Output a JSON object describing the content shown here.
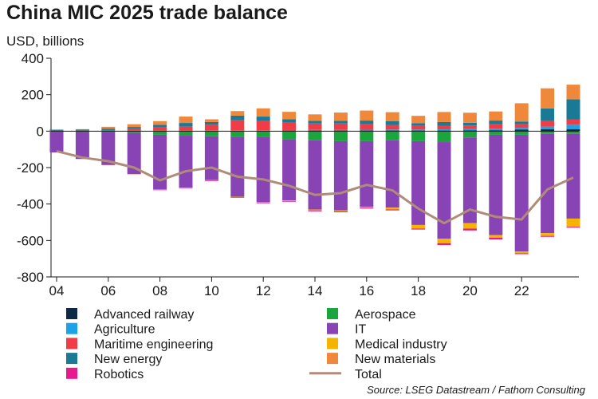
{
  "title": "China MIC 2025 trade balance",
  "unit_label": "USD, billions",
  "source": "Source: LSEG Datastream / Fathom Consulting",
  "chart_data": {
    "type": "bar",
    "stacked": true,
    "title": "China MIC 2025 trade balance",
    "ylabel": "USD, billions",
    "xlabel": "",
    "ylim": [
      -800,
      400
    ],
    "yticks": [
      400,
      200,
      0,
      -200,
      -400,
      -600,
      -800
    ],
    "grid": false,
    "legend_position": "bottom",
    "x": [
      "2004",
      "2005",
      "2006",
      "2007",
      "2008",
      "2009",
      "2010",
      "2011",
      "2012",
      "2013",
      "2014",
      "2015",
      "2016",
      "2017",
      "2018",
      "2019",
      "2020",
      "2021",
      "2022",
      "2023",
      "2024"
    ],
    "xtick_labels": [
      "04",
      "06",
      "08",
      "10",
      "12",
      "14",
      "16",
      "18",
      "20",
      "22"
    ],
    "xtick_years": [
      "2004",
      "2006",
      "2008",
      "2010",
      "2012",
      "2014",
      "2016",
      "2018",
      "2020",
      "2022"
    ],
    "series": [
      {
        "name": "Advanced railway",
        "color": "#0d2b45",
        "values": [
          0,
          0,
          1,
          2,
          3,
          3,
          2,
          2,
          2,
          3,
          3,
          3,
          3,
          3,
          3,
          3,
          4,
          5,
          8,
          10,
          10
        ]
      },
      {
        "name": "Aerospace",
        "color": "#1aa63c",
        "values": [
          -2,
          -3,
          -5,
          -10,
          -20,
          -25,
          -28,
          -30,
          -30,
          -45,
          -50,
          -55,
          -55,
          -50,
          -55,
          -60,
          -35,
          -20,
          -20,
          -15,
          -15
        ]
      },
      {
        "name": "Agriculture",
        "color": "#1aa3e8",
        "values": [
          0,
          0,
          1,
          1,
          2,
          2,
          3,
          3,
          3,
          3,
          4,
          4,
          5,
          6,
          6,
          7,
          7,
          8,
          10,
          15,
          25
        ]
      },
      {
        "name": "IT",
        "color": "#8844b4",
        "values": [
          -115,
          -150,
          -180,
          -225,
          -300,
          -285,
          -240,
          -330,
          -360,
          -335,
          -380,
          -380,
          -360,
          -370,
          -460,
          -530,
          -470,
          -550,
          -640,
          -545,
          -465
        ]
      },
      {
        "name": "Maritime engineering",
        "color": "#f03c46",
        "values": [
          3,
          4,
          4,
          10,
          15,
          20,
          30,
          55,
          50,
          40,
          35,
          35,
          30,
          25,
          20,
          20,
          20,
          25,
          20,
          30,
          30
        ]
      },
      {
        "name": "Medical industry",
        "color": "#f5b400",
        "values": [
          0,
          0,
          -1,
          -1,
          -2,
          -3,
          -3,
          -3,
          -3,
          -5,
          -5,
          -5,
          -5,
          -10,
          -20,
          -25,
          -30,
          -15,
          -10,
          -15,
          -45
        ]
      },
      {
        "name": "New energy",
        "color": "#1a7a96",
        "values": [
          5,
          5,
          8,
          10,
          15,
          20,
          15,
          25,
          25,
          20,
          15,
          15,
          20,
          20,
          15,
          20,
          15,
          20,
          15,
          70,
          110
        ]
      },
      {
        "name": "New materials",
        "color": "#f0883c",
        "values": [
          0,
          2,
          10,
          15,
          20,
          35,
          15,
          25,
          45,
          40,
          35,
          45,
          55,
          50,
          40,
          55,
          55,
          50,
          100,
          110,
          80
        ]
      },
      {
        "name": "Robotics",
        "color": "#e8198c",
        "values": [
          0,
          0,
          -1,
          -1,
          -2,
          -2,
          -3,
          -3,
          -3,
          -3,
          -5,
          -5,
          -5,
          -5,
          -5,
          -10,
          -10,
          -10,
          -5,
          -5,
          -5
        ]
      }
    ],
    "total": {
      "name": "Total",
      "color": "#b08c78",
      "values": [
        -110,
        -145,
        -165,
        -200,
        -270,
        -220,
        -200,
        -250,
        -265,
        -300,
        -350,
        -340,
        -295,
        -325,
        -425,
        -505,
        -430,
        -470,
        -485,
        -320,
        -255
      ]
    }
  },
  "legend": {
    "left": [
      "Advanced railway",
      "Agriculture",
      "Maritime engineering",
      "New energy",
      "Robotics"
    ],
    "right": [
      "Aerospace",
      "IT",
      "Medical industry",
      "New materials",
      "Total"
    ]
  }
}
